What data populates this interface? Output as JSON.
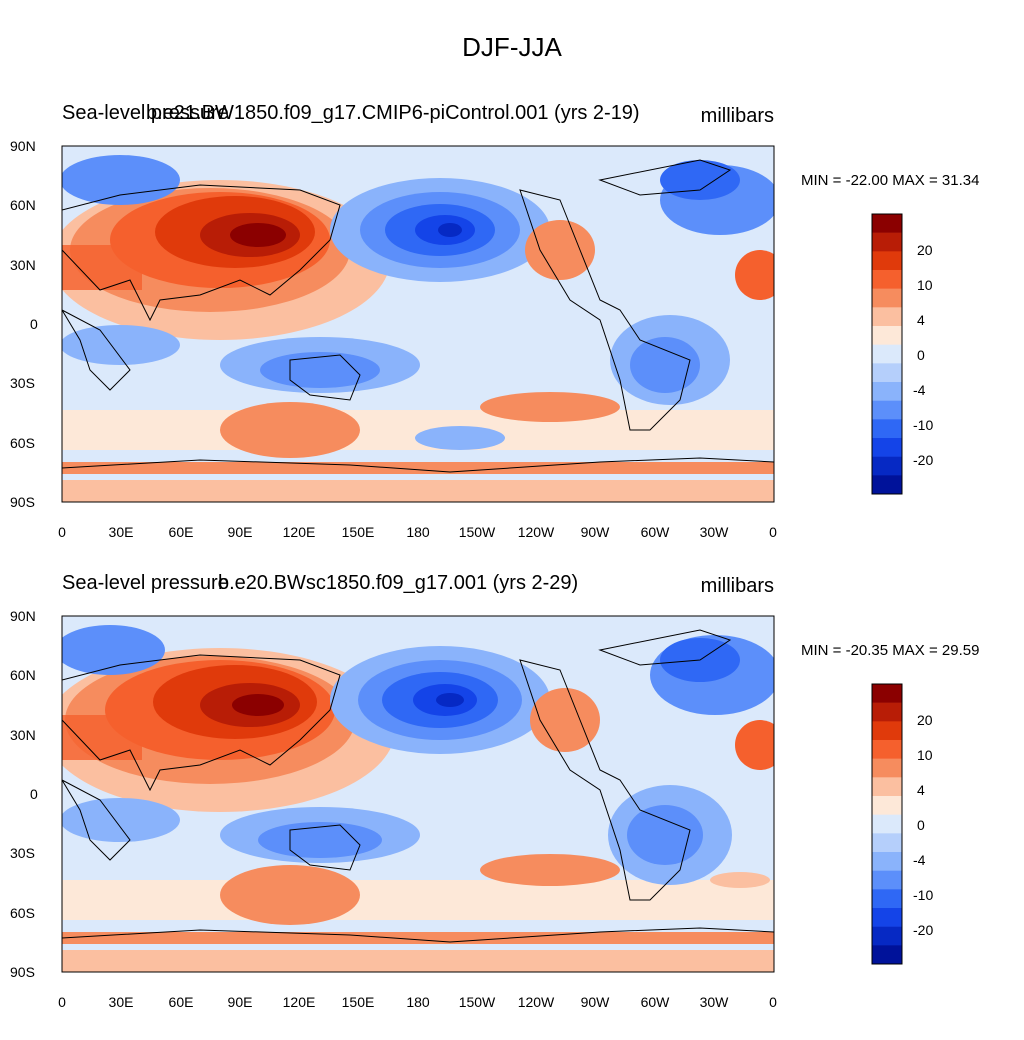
{
  "figure": {
    "title": "DJF-JJA"
  },
  "axes": {
    "lat_ticks": [
      "90N",
      "60N",
      "30N",
      "0",
      "30S",
      "60S",
      "90S"
    ],
    "lon_ticks": [
      "0",
      "30E",
      "60E",
      "90E",
      "120E",
      "150E",
      "180",
      "150W",
      "120W",
      "90W",
      "60W",
      "30W",
      "0"
    ]
  },
  "colorbar": {
    "labels": [
      "20",
      "10",
      "4",
      "0",
      "-4",
      "-10",
      "-20"
    ],
    "colors": [
      "#8b0000",
      "#b81d06",
      "#e03a0b",
      "#f5602d",
      "#f68c5e",
      "#fbbfa0",
      "#fde8d8",
      "#dbe9fb",
      "#b5cffb",
      "#8ab3fb",
      "#5c8ffa",
      "#2f68f5",
      "#1444e8",
      "#0629c4",
      "#00129a"
    ]
  },
  "panels": [
    {
      "left_title": "Sea-level pressure",
      "case_title": "b.e21.BW1850.f09_g17.CMIP6-piControl.001 (yrs 2-19)",
      "units": "millibars",
      "minmax": "MIN = -22.00 MAX =  31.34"
    },
    {
      "left_title": "Sea-level pressure",
      "case_title": "b.e20.BWsc1850.f09_g17.001 (yrs 2-29)",
      "units": "millibars",
      "minmax": "MIN = -20.35 MAX =  29.59"
    }
  ]
}
